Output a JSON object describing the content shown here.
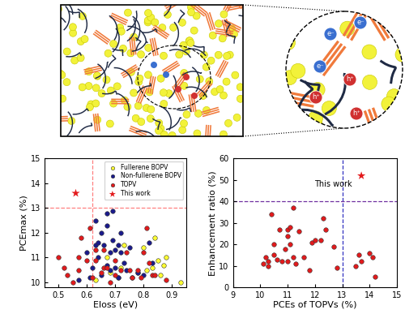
{
  "diagram": {
    "electron": "e⁻",
    "hole": "h⁺"
  },
  "chart_data": [
    {
      "type": "scatter",
      "x_label": "Eloss (eV)",
      "y_label": "PCEmax (%)",
      "xlim": [
        0.45,
        0.95
      ],
      "ylim": [
        9.8,
        15
      ],
      "xticks": [
        0.5,
        0.6,
        0.7,
        0.8,
        0.9
      ],
      "yticks": [
        10,
        11,
        12,
        13,
        14,
        15
      ],
      "legend": "upper right",
      "ref_lines": [
        {
          "axis": "x",
          "value": 0.62,
          "color": "#ff8080",
          "line_style": "dashed"
        },
        {
          "axis": "y",
          "value": 13,
          "color": "#ff8080",
          "line_style": "dashed"
        }
      ],
      "series": [
        {
          "name": "Fullerene BOPV",
          "color": "#ffff33",
          "marker": "circle",
          "x": [
            0.63,
            0.67,
            0.68,
            0.71,
            0.73,
            0.78,
            0.8,
            0.81,
            0.83,
            0.84,
            0.85,
            0.86,
            0.87,
            0.88,
            0.93,
            0.72
          ],
          "values": [
            10.1,
            11.0,
            10.4,
            10.2,
            11.5,
            10.4,
            11.4,
            10.5,
            10.6,
            11.8,
            10.9,
            10.3,
            10.7,
            11.0,
            10.0,
            10.6
          ]
        },
        {
          "name": "Non-fullerene BOPV",
          "color": "#1a1a8c",
          "marker": "circle",
          "x": [
            0.57,
            0.6,
            0.61,
            0.63,
            0.63,
            0.64,
            0.64,
            0.65,
            0.65,
            0.66,
            0.67,
            0.67,
            0.67,
            0.68,
            0.68,
            0.69,
            0.69,
            0.7,
            0.7,
            0.71,
            0.71,
            0.72,
            0.72,
            0.73,
            0.74,
            0.75,
            0.76,
            0.78,
            0.8,
            0.82,
            0.83,
            0.62
          ],
          "values": [
            10.1,
            11.2,
            10.2,
            11.5,
            12.5,
            11.6,
            11.0,
            12.0,
            10.3,
            11.5,
            12.8,
            12.3,
            10.7,
            11.2,
            10.5,
            12.9,
            11.7,
            11.3,
            10.6,
            11.5,
            10.2,
            11.2,
            12.0,
            10.8,
            10.5,
            11.4,
            10.2,
            10.4,
            10.3,
            11.6,
            10.8,
            10.6
          ]
        },
        {
          "name": "TOPV",
          "color": "#e31a1c",
          "marker": "circle",
          "x": [
            0.5,
            0.52,
            0.53,
            0.55,
            0.57,
            0.57,
            0.58,
            0.6,
            0.61,
            0.62,
            0.63,
            0.63,
            0.65,
            0.66,
            0.66,
            0.67,
            0.68,
            0.7,
            0.7,
            0.72,
            0.74,
            0.75,
            0.76,
            0.78,
            0.79,
            0.8,
            0.81,
            0.82,
            0.83,
            0.84,
            0.88
          ],
          "values": [
            11.0,
            10.6,
            10.3,
            10.0,
            11.0,
            10.5,
            11.8,
            10.9,
            12.2,
            10.2,
            11.3,
            10.9,
            10.4,
            11.3,
            10.6,
            10.6,
            10.0,
            10.9,
            10.3,
            10.5,
            11.2,
            10.5,
            10.2,
            10.5,
            10.2,
            11.2,
            12.2,
            10.8,
            10.3,
            10.3,
            10.1
          ]
        },
        {
          "name": "This work",
          "color": "#e31a1c",
          "marker": "star",
          "x": [
            0.56
          ],
          "values": [
            13.6
          ]
        }
      ]
    },
    {
      "type": "scatter",
      "x_label": "PCEs of TOPVs (%)",
      "y_label": "Enhancement ratio (%)",
      "xlim": [
        9,
        15
      ],
      "ylim": [
        0,
        60
      ],
      "xticks": [
        9,
        10,
        11,
        12,
        13,
        14,
        15
      ],
      "yticks": [
        0,
        10,
        20,
        30,
        40,
        50,
        60
      ],
      "ref_lines": [
        {
          "axis": "x",
          "value": 13,
          "color": "#3030c0",
          "line_style": "dashed"
        },
        {
          "axis": "y",
          "value": 40,
          "color": "#7030a0",
          "line_style": "dashed"
        }
      ],
      "series": [
        {
          "color": "#e31a1c",
          "marker": "circle",
          "x": [
            10.1,
            10.2,
            10.3,
            10.3,
            10.4,
            10.5,
            10.5,
            10.6,
            10.7,
            10.8,
            10.9,
            11.0,
            11.0,
            11.0,
            11.1,
            11.1,
            11.2,
            11.2,
            11.3,
            11.4,
            11.6,
            11.8,
            11.9,
            12.0,
            12.2,
            12.3,
            12.4,
            12.7,
            12.8,
            13.5,
            13.6,
            13.7,
            14.0,
            14.1,
            14.2
          ],
          "values": [
            11,
            14,
            12,
            10,
            34,
            20,
            15,
            13,
            27,
            12,
            18,
            24,
            12,
            27,
            20,
            28,
            37,
            14,
            11,
            26,
            14,
            8,
            21,
            22,
            22,
            32,
            27,
            19,
            9,
            10,
            15,
            12,
            16,
            14,
            5
          ]
        },
        {
          "name": "This work",
          "color": "#e31a1c",
          "marker": "star",
          "x": [
            13.7
          ],
          "values": [
            52
          ]
        }
      ]
    }
  ]
}
